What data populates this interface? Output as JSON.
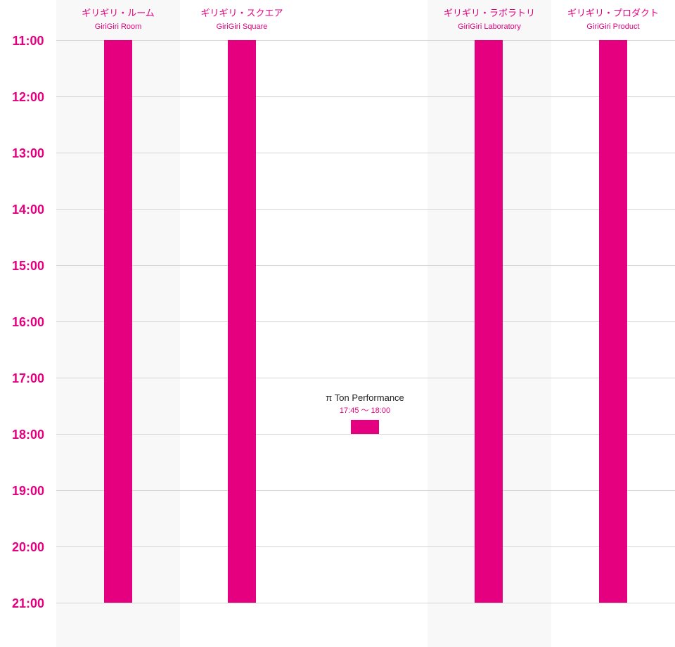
{
  "colors": {
    "accent": "#e4007f",
    "grid": "#d7d7d7",
    "column_shade": "#f8f8f8",
    "text": "#222222"
  },
  "time_labels": [
    "11:00",
    "12:00",
    "13:00",
    "14:00",
    "15:00",
    "16:00",
    "17:00",
    "18:00",
    "19:00",
    "20:00",
    "21:00"
  ],
  "venues": [
    {
      "ja": "ギリギリ・ルーム",
      "en": "GiriGiri Room",
      "shaded": true,
      "slot_start": "11:00",
      "slot_end": "21:00"
    },
    {
      "ja": "ギリギリ・スクエア",
      "en": "GiriGiri Square",
      "shaded": false,
      "slot_start": "11:00",
      "slot_end": "21:00"
    },
    {
      "ja": "",
      "en": "",
      "shaded": false,
      "slot_start": "17:45",
      "slot_end": "18:00"
    },
    {
      "ja": "ギリギリ・ラボラトリ",
      "en": "GiriGiri Laboratory",
      "shaded": true,
      "slot_start": "11:00",
      "slot_end": "21:00"
    },
    {
      "ja": "ギリギリ・プロダクト",
      "en": "GiriGiri Product",
      "shaded": false,
      "slot_start": "11:00",
      "slot_end": "21:00"
    }
  ],
  "event": {
    "title": "π Ton Performance",
    "time": "17:45 〜 18:00"
  }
}
